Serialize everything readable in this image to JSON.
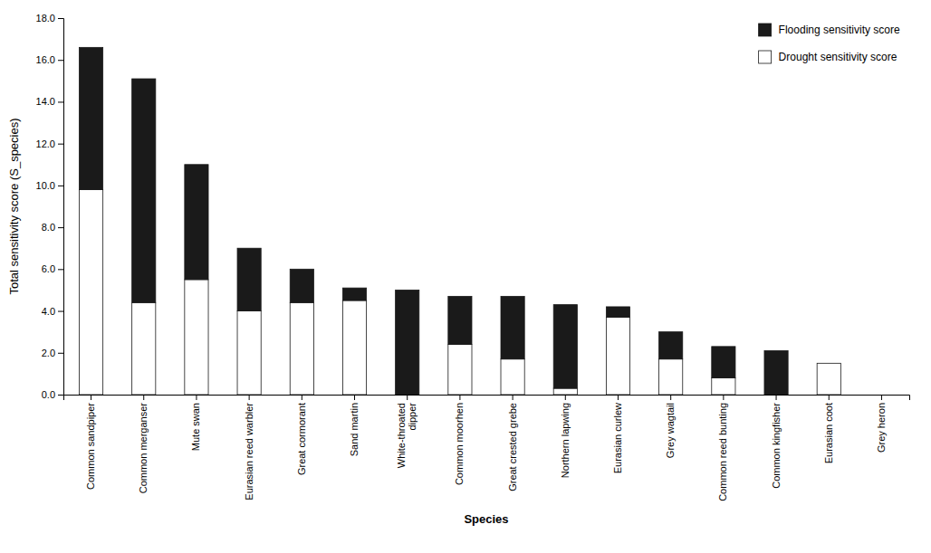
{
  "chart_data": {
    "type": "bar",
    "stacked": true,
    "xlabel": "Species",
    "ylabel": "Total sensitivity score (S_species)",
    "categories": [
      "Common sandpiper",
      "Common merganser",
      "Mute swan",
      "Eurasian reed warbler",
      "Great cormorant",
      "Sand martin",
      "White-throated\ndipper",
      "Common moorhen",
      "Great crested grebe",
      "Northern lapwing",
      "Eurasian curlew",
      "Grey wagtail",
      "Common reed bunting",
      "Common kingfisher",
      "Eurasian coot",
      "Grey heron"
    ],
    "series": [
      {
        "name": "Drought sensitivity score",
        "color": "#ffffff",
        "values": [
          9.8,
          4.4,
          5.5,
          4.0,
          4.4,
          4.5,
          0.0,
          2.4,
          1.7,
          0.3,
          3.7,
          1.7,
          0.8,
          0.0,
          1.5,
          0.0
        ]
      },
      {
        "name": "Flooding sensitivity score",
        "color": "#1a1a1a",
        "values": [
          6.8,
          10.7,
          5.5,
          3.0,
          1.6,
          0.6,
          5.0,
          2.3,
          3.0,
          4.0,
          0.5,
          1.3,
          1.5,
          2.1,
          0.0,
          0.0
        ]
      }
    ],
    "ylim": [
      0.0,
      18.0
    ],
    "yticks": [
      {
        "value": 0.0,
        "label": "0.0"
      },
      {
        "value": 2.0,
        "label": "2.0"
      },
      {
        "value": 4.0,
        "label": "4.0"
      },
      {
        "value": 6.0,
        "label": "6.0"
      },
      {
        "value": 8.0,
        "label": "8.0"
      },
      {
        "value": 10.0,
        "label": "10.0"
      },
      {
        "value": 12.0,
        "label": "12.0"
      },
      {
        "value": 14.0,
        "label": "14.0"
      },
      {
        "value": 16.0,
        "label": "16.0"
      },
      {
        "value": 18.0,
        "label": "18.0"
      }
    ],
    "grid": false,
    "legend": "upper right"
  }
}
